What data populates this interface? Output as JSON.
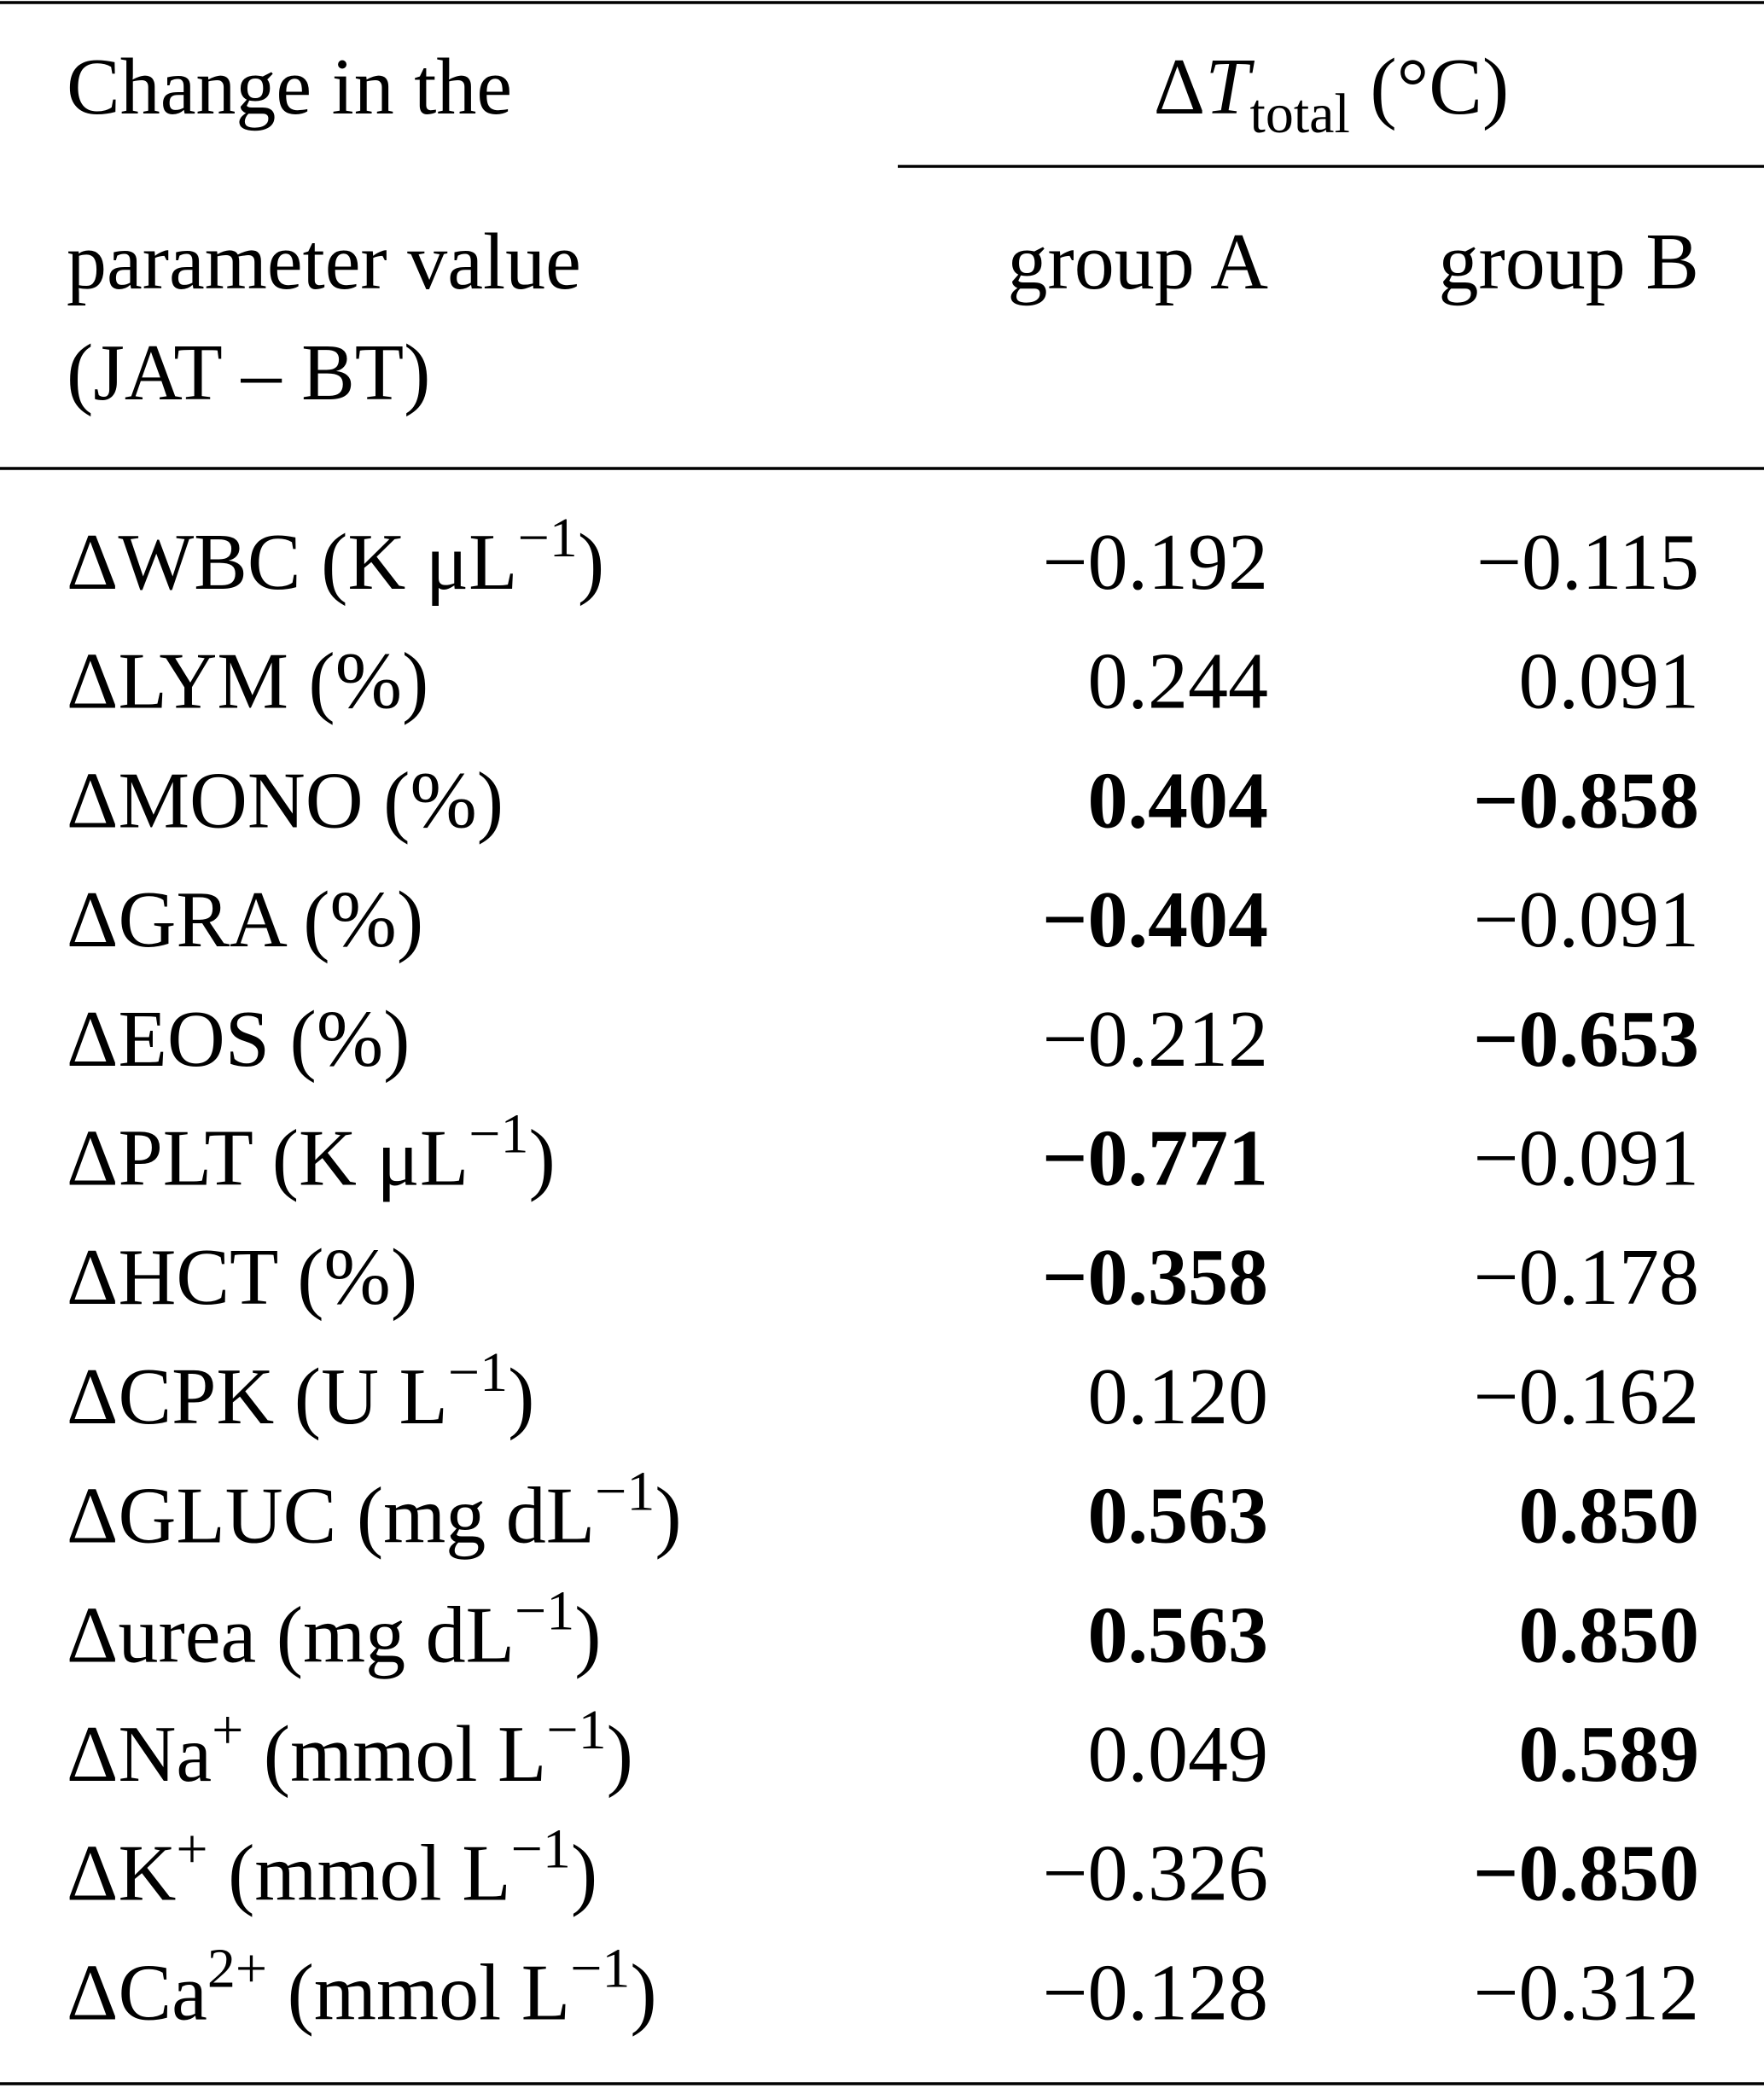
{
  "header": {
    "row_label": [
      "Change in the",
      "parameter value",
      "(JAT – BT)"
    ],
    "span": {
      "delta": "Δ",
      "symbol": "T",
      "subscript": "total",
      "unit": "(°C)"
    },
    "columns": [
      "group A",
      "group B"
    ]
  },
  "table": {
    "rows": [
      {
        "label": [
          {
            "text": "ΔWBC (K μL"
          },
          {
            "sup": "−1"
          },
          {
            "text": ")"
          }
        ],
        "values": [
          "−0.192",
          "−0.115"
        ],
        "bold": [
          false,
          false
        ]
      },
      {
        "label": [
          {
            "text": "ΔLYM (%)"
          }
        ],
        "values": [
          "0.244",
          "0.091"
        ],
        "bold": [
          false,
          false
        ]
      },
      {
        "label": [
          {
            "text": "ΔMONO (%)"
          }
        ],
        "values": [
          "0.404",
          "−0.858"
        ],
        "bold": [
          true,
          true
        ]
      },
      {
        "label": [
          {
            "text": "ΔGRA (%)"
          }
        ],
        "values": [
          "−0.404",
          "−0.091"
        ],
        "bold": [
          true,
          false
        ]
      },
      {
        "label": [
          {
            "text": "ΔEOS (%)"
          }
        ],
        "values": [
          "−0.212",
          "−0.653"
        ],
        "bold": [
          false,
          true
        ]
      },
      {
        "label": [
          {
            "text": "ΔPLT (K μL"
          },
          {
            "sup": "−1"
          },
          {
            "text": ")"
          }
        ],
        "values": [
          "−0.771",
          "−0.091"
        ],
        "bold": [
          true,
          false
        ]
      },
      {
        "label": [
          {
            "text": "ΔHCT (%)"
          }
        ],
        "values": [
          "−0.358",
          "−0.178"
        ],
        "bold": [
          true,
          false
        ]
      },
      {
        "label": [
          {
            "text": "ΔCPK (U L"
          },
          {
            "sup": "−1"
          },
          {
            "text": ")"
          }
        ],
        "values": [
          "0.120",
          "−0.162"
        ],
        "bold": [
          false,
          false
        ]
      },
      {
        "label": [
          {
            "text": "ΔGLUC (mg dL"
          },
          {
            "sup": "−1"
          },
          {
            "text": ")"
          }
        ],
        "values": [
          "0.563",
          "0.850"
        ],
        "bold": [
          true,
          true
        ]
      },
      {
        "label": [
          {
            "text": "Δurea (mg dL"
          },
          {
            "sup": "−1"
          },
          {
            "text": ")"
          }
        ],
        "values": [
          "0.563",
          "0.850"
        ],
        "bold": [
          true,
          true
        ]
      },
      {
        "label": [
          {
            "text": "ΔNa"
          },
          {
            "sup": "+"
          },
          {
            "text": " (mmol L"
          },
          {
            "sup": "−1"
          },
          {
            "text": ")"
          }
        ],
        "values": [
          "0.049",
          "0.589"
        ],
        "bold": [
          false,
          true
        ]
      },
      {
        "label": [
          {
            "text": "ΔK"
          },
          {
            "sup": "+"
          },
          {
            "text": " (mmol L"
          },
          {
            "sup": "−1"
          },
          {
            "text": ")"
          }
        ],
        "values": [
          "−0.326",
          "−0.850"
        ],
        "bold": [
          false,
          true
        ]
      },
      {
        "label": [
          {
            "text": "ΔCa"
          },
          {
            "sup": "2+"
          },
          {
            "text": " (mmol L"
          },
          {
            "sup": "−1"
          },
          {
            "text": ")"
          }
        ],
        "values": [
          "−0.128",
          "−0.312"
        ],
        "bold": [
          false,
          false
        ]
      }
    ]
  }
}
